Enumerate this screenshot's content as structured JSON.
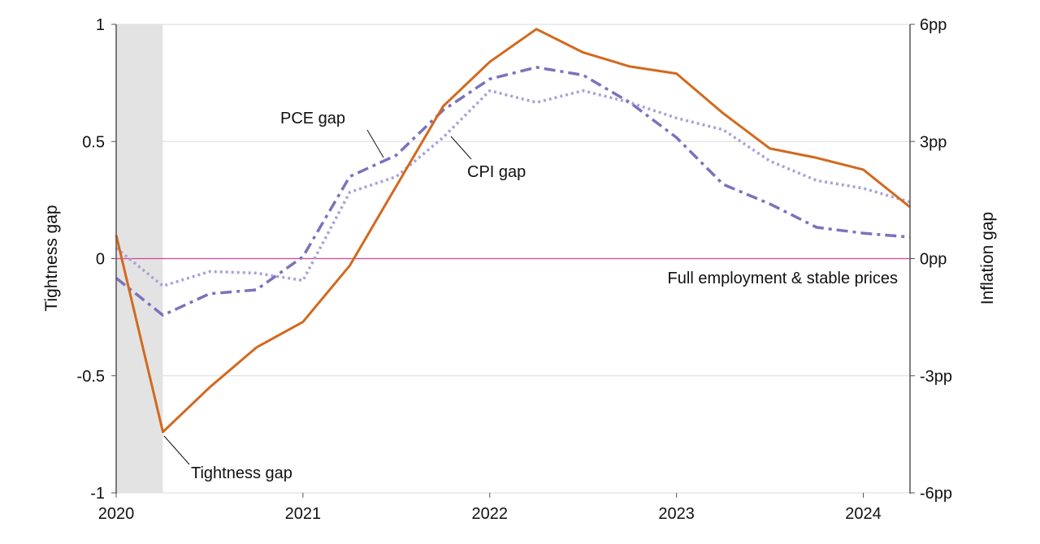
{
  "chart_data": {
    "type": "line",
    "title": "",
    "xlabel": "",
    "ylabel_left": "Tightness gap",
    "ylabel_right": "Inflation gap",
    "xlim": [
      2020,
      2024.25
    ],
    "ylim_left": [
      -1,
      1
    ],
    "ylim_right": [
      -6,
      6
    ],
    "x_ticks": [
      "2020",
      "2021",
      "2022",
      "2023",
      "2024"
    ],
    "x_tick_values": [
      2020,
      2021,
      2022,
      2023,
      2024
    ],
    "y_ticks_left": [
      "1",
      "0.5",
      "0",
      "-0.5",
      "-1"
    ],
    "y_tick_values_left": [
      1,
      0.5,
      0,
      -0.5,
      -1
    ],
    "y_ticks_right": [
      "6pp",
      "3pp",
      "0pp",
      "-3pp",
      "-6pp"
    ],
    "y_tick_values_right": [
      6,
      3,
      0,
      -3,
      -6
    ],
    "grid": "horizontal",
    "shaded_period": [
      2020.0,
      2020.25
    ],
    "reference_line": {
      "value": 0,
      "label": "Full employment & stable prices",
      "color": "#e0409a"
    },
    "x": [
      2020.0,
      2020.25,
      2020.5,
      2020.75,
      2021.0,
      2021.25,
      2021.5,
      2021.75,
      2022.0,
      2022.25,
      2022.5,
      2022.75,
      2023.0,
      2023.25,
      2023.5,
      2023.75,
      2024.0,
      2024.25
    ],
    "series": [
      {
        "name": "Tightness gap",
        "axis": "left",
        "color": "#d2691e",
        "style": "solid",
        "values": [
          0.1,
          -0.74,
          -0.55,
          -0.38,
          -0.27,
          -0.03,
          0.31,
          0.65,
          0.84,
          0.98,
          0.88,
          0.82,
          0.79,
          0.62,
          0.47,
          0.43,
          0.38,
          0.22
        ]
      },
      {
        "name": "PCE gap",
        "axis": "right",
        "color": "#7b72bd",
        "style": "dashdot",
        "values": [
          -0.5,
          -1.45,
          -0.9,
          -0.8,
          0.05,
          2.1,
          2.65,
          3.8,
          4.6,
          4.9,
          4.7,
          4.0,
          3.1,
          1.9,
          1.4,
          0.8,
          0.65,
          0.55
        ]
      },
      {
        "name": "CPI gap",
        "axis": "right",
        "color": "#a9a3d6",
        "style": "dotted",
        "values": [
          0.27,
          -0.7,
          -0.33,
          -0.37,
          -0.56,
          1.7,
          2.1,
          3.1,
          4.3,
          4.0,
          4.3,
          4.0,
          3.6,
          3.3,
          2.5,
          2.0,
          1.8,
          1.45
        ]
      }
    ]
  }
}
